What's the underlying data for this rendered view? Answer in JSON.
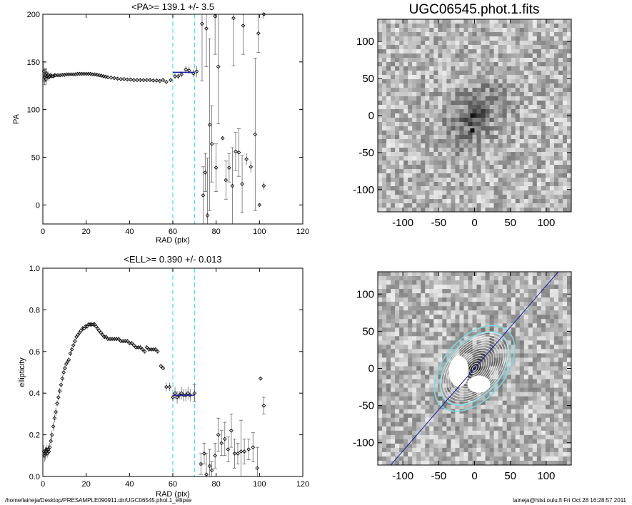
{
  "footer": {
    "left": "/home/laineja/Desktop/PRESAMPLE090911.dir/UGC06545.phot.1_ellipse",
    "right": "laineja@hiisi.oulu.fi  Fri Oct 28 16:28:57 2011"
  },
  "image_title": "UGC06545.phot.1.fits",
  "chart_data": [
    {
      "type": "scatter",
      "title": "<PA>= 139.1 +/-   3.5",
      "xlabel": "RAD (pix)",
      "ylabel": "PA",
      "xlim": [
        0,
        120
      ],
      "ylim": [
        -20,
        200
      ],
      "xticks": [
        0,
        20,
        40,
        60,
        80,
        100,
        120
      ],
      "yticks": [
        0,
        50,
        100,
        150,
        200
      ],
      "vlines": [
        60,
        70
      ],
      "fit": {
        "x": [
          60,
          70
        ],
        "y": [
          139.1,
          139.1
        ]
      },
      "errorbar_points": [
        {
          "x": 0.5,
          "y": 140,
          "err": 10
        },
        {
          "x": 0.8,
          "y": 134,
          "err": 8
        },
        {
          "x": 1.1,
          "y": 136,
          "err": 7
        },
        {
          "x": 1.4,
          "y": 132,
          "err": 6
        },
        {
          "x": 1.7,
          "y": 138,
          "err": 5
        },
        {
          "x": 2.0,
          "y": 135,
          "err": 5
        },
        {
          "x": 2.4,
          "y": 136,
          "err": 4
        },
        {
          "x": 2.8,
          "y": 134,
          "err": 4
        },
        {
          "x": 3.2,
          "y": 135,
          "err": 3
        },
        {
          "x": 3.7,
          "y": 136,
          "err": 3
        },
        {
          "x": 4.2,
          "y": 135,
          "err": 2
        },
        {
          "x": 4.8,
          "y": 135,
          "err": 2
        },
        {
          "x": 5.4,
          "y": 136,
          "err": 2
        },
        {
          "x": 6.0,
          "y": 136,
          "err": 1.5
        },
        {
          "x": 7.0,
          "y": 136,
          "err": 1.5
        },
        {
          "x": 8.0,
          "y": 136,
          "err": 1.5
        },
        {
          "x": 9.0,
          "y": 136.5,
          "err": 1.5
        },
        {
          "x": 10.0,
          "y": 136.5,
          "err": 1.5
        },
        {
          "x": 11.0,
          "y": 137,
          "err": 1.5
        },
        {
          "x": 12.0,
          "y": 137,
          "err": 1.5
        },
        {
          "x": 13.0,
          "y": 137,
          "err": 1.5
        },
        {
          "x": 14.0,
          "y": 137,
          "err": 1.5
        },
        {
          "x": 15.0,
          "y": 137,
          "err": 1.5
        },
        {
          "x": 16.0,
          "y": 137.5,
          "err": 1.5
        },
        {
          "x": 17.0,
          "y": 137.5,
          "err": 1.5
        },
        {
          "x": 18.0,
          "y": 137.5,
          "err": 1.5
        },
        {
          "x": 19.0,
          "y": 137.5,
          "err": 1.5
        },
        {
          "x": 20.0,
          "y": 137.5,
          "err": 1.5
        },
        {
          "x": 21.0,
          "y": 137.5,
          "err": 1.5
        },
        {
          "x": 22.0,
          "y": 137.5,
          "err": 1.5
        },
        {
          "x": 23.0,
          "y": 137,
          "err": 1.5
        },
        {
          "x": 24.0,
          "y": 137,
          "err": 1.5
        },
        {
          "x": 25.0,
          "y": 136.5,
          "err": 1.5
        },
        {
          "x": 26.0,
          "y": 136,
          "err": 1.5
        },
        {
          "x": 27.0,
          "y": 135.5,
          "err": 1.5
        },
        {
          "x": 28.0,
          "y": 135,
          "err": 1.5
        },
        {
          "x": 29.0,
          "y": 134.5,
          "err": 1.5
        },
        {
          "x": 30.0,
          "y": 134,
          "err": 1.5
        },
        {
          "x": 31.5,
          "y": 133.5,
          "err": 1.5
        },
        {
          "x": 33.0,
          "y": 133,
          "err": 1.5
        },
        {
          "x": 34.5,
          "y": 132.5,
          "err": 1.5
        },
        {
          "x": 36.0,
          "y": 132,
          "err": 1.5
        },
        {
          "x": 37.5,
          "y": 132,
          "err": 1.5
        },
        {
          "x": 39.0,
          "y": 131.5,
          "err": 1.5
        },
        {
          "x": 40.5,
          "y": 131.5,
          "err": 1.5
        },
        {
          "x": 42.0,
          "y": 131,
          "err": 1.5
        },
        {
          "x": 43.5,
          "y": 131,
          "err": 1.5
        },
        {
          "x": 45.0,
          "y": 131,
          "err": 1.5
        },
        {
          "x": 46.5,
          "y": 131,
          "err": 1.5
        },
        {
          "x": 48.0,
          "y": 131,
          "err": 1.5
        },
        {
          "x": 49.5,
          "y": 131,
          "err": 1.5
        },
        {
          "x": 51.0,
          "y": 130.5,
          "err": 1.5
        },
        {
          "x": 52.5,
          "y": 130.5,
          "err": 1.5
        },
        {
          "x": 54.0,
          "y": 130,
          "err": 1.5
        },
        {
          "x": 55.5,
          "y": 131,
          "err": 2
        },
        {
          "x": 57.0,
          "y": 129,
          "err": 2
        },
        {
          "x": 59.0,
          "y": 131,
          "err": 2
        },
        {
          "x": 61.0,
          "y": 135,
          "err": 3
        },
        {
          "x": 62.5,
          "y": 135,
          "err": 3
        },
        {
          "x": 64.0,
          "y": 137,
          "err": 3
        },
        {
          "x": 66.0,
          "y": 142,
          "err": 4
        },
        {
          "x": 67.5,
          "y": 141,
          "err": 4
        },
        {
          "x": 69.5,
          "y": 138,
          "err": 4
        },
        {
          "x": 71.0,
          "y": 140,
          "err": 6
        },
        {
          "x": 74.0,
          "y": 10,
          "err": 30
        },
        {
          "x": 75.0,
          "y": 34,
          "err": 20
        },
        {
          "x": 76.0,
          "y": -11,
          "err": 60
        },
        {
          "x": 77.0,
          "y": 84,
          "err": 90
        },
        {
          "x": 78.0,
          "y": 64,
          "err": 40
        },
        {
          "x": 80.0,
          "y": 39,
          "err": 25
        },
        {
          "x": 81.0,
          "y": 145,
          "err": 60
        },
        {
          "x": 83.0,
          "y": 70,
          "err": 1
        },
        {
          "x": 84.5,
          "y": 26,
          "err": 20
        },
        {
          "x": 86.0,
          "y": 39,
          "err": 15
        },
        {
          "x": 87.5,
          "y": 20,
          "err": 40
        },
        {
          "x": 89.0,
          "y": 56,
          "err": 20
        },
        {
          "x": 90.5,
          "y": 55,
          "err": 25
        },
        {
          "x": 92.0,
          "y": 22,
          "err": 30
        },
        {
          "x": 94.0,
          "y": 48,
          "err": 6
        },
        {
          "x": 96.0,
          "y": 40,
          "err": 6
        },
        {
          "x": 98.0,
          "y": 74,
          "err": 80
        },
        {
          "x": 100.0,
          "y": 0,
          "err": 1
        },
        {
          "x": 102.0,
          "y": 20,
          "err": 4
        }
      ],
      "offscale_points": [
        {
          "x": 73.5,
          "y": 190,
          "err": 60
        },
        {
          "x": 75.5,
          "y": 185,
          "err": 40
        },
        {
          "x": 79.5,
          "y": 198,
          "err": 40
        },
        {
          "x": 88.0,
          "y": 196,
          "err": 50
        },
        {
          "x": 92.5,
          "y": 188,
          "err": 30
        },
        {
          "x": 99.5,
          "y": 180,
          "err": 20
        },
        {
          "x": 102.0,
          "y": 200,
          "err": 5
        }
      ]
    },
    {
      "type": "scatter",
      "title": "<ELL>= 0.390 +/-  0.013",
      "xlabel": "RAD (pix)",
      "ylabel": "ellipticity",
      "xlim": [
        0,
        120
      ],
      "ylim": [
        0,
        1
      ],
      "xticks": [
        0,
        20,
        40,
        60,
        80,
        100,
        120
      ],
      "yticks": [
        0.0,
        0.2,
        0.4,
        0.6,
        0.8,
        1.0
      ],
      "vlines": [
        60,
        70
      ],
      "fit": {
        "x": [
          60,
          70
        ],
        "y": [
          0.39,
          0.39
        ]
      },
      "errorbar_points": [
        {
          "x": 0.5,
          "y": 0.12,
          "err": 0.03
        },
        {
          "x": 0.8,
          "y": 0.1,
          "err": 0.03
        },
        {
          "x": 1.1,
          "y": 0.11,
          "err": 0.03
        },
        {
          "x": 1.4,
          "y": 0.12,
          "err": 0.02
        },
        {
          "x": 1.7,
          "y": 0.13,
          "err": 0.02
        },
        {
          "x": 2.0,
          "y": 0.11,
          "err": 0.02
        },
        {
          "x": 2.4,
          "y": 0.13,
          "err": 0.02
        },
        {
          "x": 2.8,
          "y": 0.12,
          "err": 0.02
        },
        {
          "x": 3.2,
          "y": 0.14,
          "err": 0.02
        },
        {
          "x": 3.7,
          "y": 0.17,
          "err": 0.02
        },
        {
          "x": 4.2,
          "y": 0.2,
          "err": 0.02
        },
        {
          "x": 4.8,
          "y": 0.24,
          "err": 0.02
        },
        {
          "x": 5.4,
          "y": 0.28,
          "err": 0.02
        },
        {
          "x": 6.0,
          "y": 0.31,
          "err": 0.02
        },
        {
          "x": 6.6,
          "y": 0.35,
          "err": 0.015
        },
        {
          "x": 7.2,
          "y": 0.38,
          "err": 0.015
        },
        {
          "x": 7.8,
          "y": 0.41,
          "err": 0.015
        },
        {
          "x": 8.4,
          "y": 0.44,
          "err": 0.015
        },
        {
          "x": 9.0,
          "y": 0.47,
          "err": 0.015
        },
        {
          "x": 9.6,
          "y": 0.5,
          "err": 0.015
        },
        {
          "x": 10.2,
          "y": 0.52,
          "err": 0.012
        },
        {
          "x": 10.8,
          "y": 0.54,
          "err": 0.012
        },
        {
          "x": 11.4,
          "y": 0.55,
          "err": 0.012
        },
        {
          "x": 12.0,
          "y": 0.56,
          "err": 0.012
        },
        {
          "x": 12.7,
          "y": 0.59,
          "err": 0.012
        },
        {
          "x": 13.4,
          "y": 0.61,
          "err": 0.012
        },
        {
          "x": 14.1,
          "y": 0.63,
          "err": 0.012
        },
        {
          "x": 14.8,
          "y": 0.65,
          "err": 0.012
        },
        {
          "x": 15.5,
          "y": 0.67,
          "err": 0.012
        },
        {
          "x": 16.2,
          "y": 0.68,
          "err": 0.012
        },
        {
          "x": 16.9,
          "y": 0.69,
          "err": 0.012
        },
        {
          "x": 17.6,
          "y": 0.7,
          "err": 0.012
        },
        {
          "x": 18.3,
          "y": 0.71,
          "err": 0.012
        },
        {
          "x": 19.0,
          "y": 0.71,
          "err": 0.012
        },
        {
          "x": 19.7,
          "y": 0.72,
          "err": 0.012
        },
        {
          "x": 20.4,
          "y": 0.72,
          "err": 0.012
        },
        {
          "x": 21.1,
          "y": 0.73,
          "err": 0.012
        },
        {
          "x": 21.8,
          "y": 0.73,
          "err": 0.012
        },
        {
          "x": 22.5,
          "y": 0.73,
          "err": 0.012
        },
        {
          "x": 23.2,
          "y": 0.73,
          "err": 0.012
        },
        {
          "x": 23.9,
          "y": 0.73,
          "err": 0.012
        },
        {
          "x": 24.6,
          "y": 0.72,
          "err": 0.012
        },
        {
          "x": 25.3,
          "y": 0.71,
          "err": 0.012
        },
        {
          "x": 26.0,
          "y": 0.7,
          "err": 0.012
        },
        {
          "x": 26.8,
          "y": 0.69,
          "err": 0.01
        },
        {
          "x": 27.6,
          "y": 0.68,
          "err": 0.01
        },
        {
          "x": 28.4,
          "y": 0.67,
          "err": 0.01
        },
        {
          "x": 29.2,
          "y": 0.67,
          "err": 0.01
        },
        {
          "x": 30.0,
          "y": 0.66,
          "err": 0.01
        },
        {
          "x": 31.0,
          "y": 0.66,
          "err": 0.01
        },
        {
          "x": 32.0,
          "y": 0.66,
          "err": 0.01
        },
        {
          "x": 33.0,
          "y": 0.66,
          "err": 0.01
        },
        {
          "x": 34.0,
          "y": 0.66,
          "err": 0.01
        },
        {
          "x": 35.0,
          "y": 0.66,
          "err": 0.01
        },
        {
          "x": 36.0,
          "y": 0.65,
          "err": 0.01
        },
        {
          "x": 37.0,
          "y": 0.65,
          "err": 0.01
        },
        {
          "x": 38.0,
          "y": 0.65,
          "err": 0.01
        },
        {
          "x": 39.0,
          "y": 0.65,
          "err": 0.01
        },
        {
          "x": 40.0,
          "y": 0.64,
          "err": 0.01
        },
        {
          "x": 41.0,
          "y": 0.64,
          "err": 0.01
        },
        {
          "x": 42.0,
          "y": 0.63,
          "err": 0.01
        },
        {
          "x": 43.0,
          "y": 0.62,
          "err": 0.01
        },
        {
          "x": 44.0,
          "y": 0.62,
          "err": 0.01
        },
        {
          "x": 45.0,
          "y": 0.62,
          "err": 0.01
        },
        {
          "x": 46.0,
          "y": 0.61,
          "err": 0.01
        },
        {
          "x": 47.0,
          "y": 0.6,
          "err": 0.01
        },
        {
          "x": 48.0,
          "y": 0.62,
          "err": 0.01
        },
        {
          "x": 49.0,
          "y": 0.61,
          "err": 0.01
        },
        {
          "x": 50.0,
          "y": 0.61,
          "err": 0.01
        },
        {
          "x": 51.0,
          "y": 0.61,
          "err": 0.01
        },
        {
          "x": 52.0,
          "y": 0.61,
          "err": 0.01
        },
        {
          "x": 53.0,
          "y": 0.6,
          "err": 0.01
        },
        {
          "x": 54.5,
          "y": 0.53,
          "err": 0.01
        },
        {
          "x": 55.5,
          "y": 0.52,
          "err": 0.01
        },
        {
          "x": 57.0,
          "y": 0.43,
          "err": 0.02
        },
        {
          "x": 58.5,
          "y": 0.43,
          "err": 0.02
        },
        {
          "x": 60.0,
          "y": 0.38,
          "err": 0.02
        },
        {
          "x": 61.0,
          "y": 0.4,
          "err": 0.03
        },
        {
          "x": 62.0,
          "y": 0.38,
          "err": 0.03
        },
        {
          "x": 63.0,
          "y": 0.39,
          "err": 0.02
        },
        {
          "x": 64.0,
          "y": 0.4,
          "err": 0.03
        },
        {
          "x": 65.0,
          "y": 0.39,
          "err": 0.03
        },
        {
          "x": 66.0,
          "y": 0.39,
          "err": 0.03
        },
        {
          "x": 67.0,
          "y": 0.4,
          "err": 0.03
        },
        {
          "x": 68.0,
          "y": 0.39,
          "err": 0.03
        },
        {
          "x": 70.0,
          "y": 0.4,
          "err": 0.04
        },
        {
          "x": 73.0,
          "y": 0.06,
          "err": 0.05
        },
        {
          "x": 74.5,
          "y": 0.11,
          "err": 0.05
        },
        {
          "x": 75.5,
          "y": 0.01,
          "err": 0.1
        },
        {
          "x": 77.0,
          "y": 0.05,
          "err": 0.08
        },
        {
          "x": 78.0,
          "y": 0.03,
          "err": 0.04
        },
        {
          "x": 79.5,
          "y": 0.1,
          "err": 0.06
        },
        {
          "x": 81.0,
          "y": 0.2,
          "err": 0.08
        },
        {
          "x": 82.5,
          "y": 0.16,
          "err": 0.06
        },
        {
          "x": 84.0,
          "y": 0.18,
          "err": 0.08
        },
        {
          "x": 85.5,
          "y": 0.13,
          "err": 0.06
        },
        {
          "x": 87.0,
          "y": 0.22,
          "err": 0.08
        },
        {
          "x": 88.5,
          "y": 0.11,
          "err": 0.07
        },
        {
          "x": 90.0,
          "y": 0.11,
          "err": 0.05
        },
        {
          "x": 91.5,
          "y": 0.12,
          "err": 0.15
        },
        {
          "x": 93.0,
          "y": 0.12,
          "err": 0.06
        },
        {
          "x": 95.0,
          "y": 0.13,
          "err": 0.05
        },
        {
          "x": 97.0,
          "y": 0.14,
          "err": 0.07
        },
        {
          "x": 99.0,
          "y": 0.04,
          "err": 0.1
        },
        {
          "x": 100.5,
          "y": 0.47,
          "err": 0.01
        },
        {
          "x": 102.0,
          "y": 0.34,
          "err": 0.04
        }
      ]
    }
  ],
  "images": [
    {
      "xlim": [
        -135,
        135
      ],
      "ylim": [
        -130,
        130
      ],
      "xticks": [
        -100,
        -50,
        0,
        50,
        100
      ],
      "yticks": [
        -100,
        -50,
        0,
        50,
        100
      ],
      "galaxy": {
        "pa_deg": 139.1,
        "ellipticity": 0.39,
        "scale": 28
      }
    },
    {
      "xlim": [
        -135,
        135
      ],
      "ylim": [
        -130,
        130
      ],
      "xticks": [
        -100,
        -50,
        0,
        50,
        100
      ],
      "yticks": [
        -100,
        -50,
        0,
        50,
        100
      ],
      "galaxy": {
        "pa_deg": 139.1,
        "ellipticity": 0.39,
        "scale": 28
      },
      "major_axis_line": true,
      "isophotes": {
        "outer_radii": [
          60,
          70
        ]
      }
    }
  ],
  "colors": {
    "axes": "#000000",
    "markers": "#000000",
    "errorbars": "#555555",
    "fit": "#1a1aa8",
    "vlines": "#55d8e8",
    "isophote_outer": "#7fd8e0",
    "isophote_inner": "#ffffff"
  }
}
